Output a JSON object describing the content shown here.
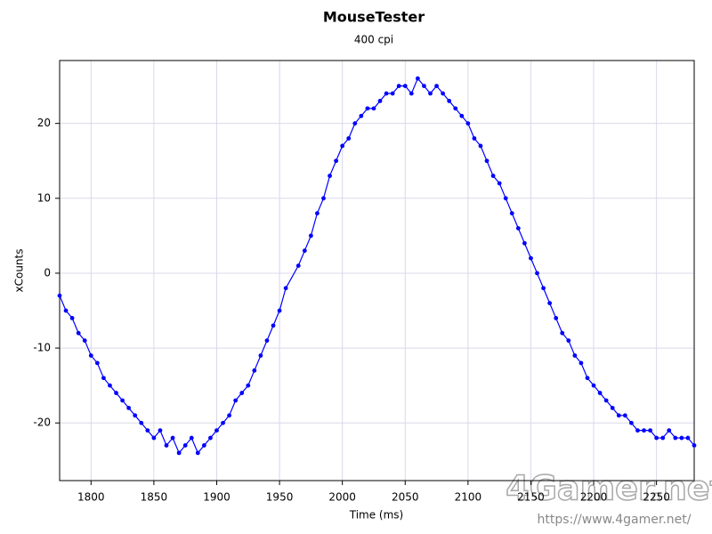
{
  "chart_data": {
    "type": "line",
    "title": "MouseTester",
    "subtitle": "400 cpi",
    "x_label": "Time (ms)",
    "y_label": "xCounts",
    "x": [
      1775,
      1780,
      1785,
      1790,
      1795,
      1800,
      1805,
      1810,
      1815,
      1820,
      1825,
      1830,
      1835,
      1840,
      1845,
      1850,
      1855,
      1860,
      1865,
      1870,
      1875,
      1880,
      1885,
      1890,
      1895,
      1900,
      1905,
      1910,
      1915,
      1920,
      1925,
      1930,
      1935,
      1940,
      1945,
      1950,
      1955,
      1965,
      1970,
      1975,
      1980,
      1985,
      1990,
      1995,
      2000,
      2005,
      2010,
      2015,
      2020,
      2025,
      2030,
      2035,
      2040,
      2045,
      2050,
      2055,
      2060,
      2065,
      2070,
      2075,
      2080,
      2085,
      2090,
      2095,
      2100,
      2105,
      2110,
      2115,
      2120,
      2125,
      2130,
      2135,
      2140,
      2145,
      2150,
      2155,
      2160,
      2165,
      2170,
      2175,
      2180,
      2185,
      2190,
      2195,
      2200,
      2205,
      2210,
      2215,
      2220,
      2225,
      2230,
      2235,
      2240,
      2245,
      2250,
      2255,
      2260,
      2265,
      2270,
      2275,
      2280
    ],
    "series": [
      {
        "name": "xCounts",
        "color": "#0000ff",
        "values": [
          -3,
          -5,
          -6,
          -8,
          -9,
          -11,
          -12,
          -14,
          -15,
          -16,
          -17,
          -18,
          -19,
          -20,
          -21,
          -22,
          -21,
          -23,
          -22,
          -24,
          -23,
          -22,
          -24,
          -23,
          -22,
          -21,
          -20,
          -19,
          -17,
          -16,
          -15,
          -13,
          -11,
          -9,
          -7,
          -5,
          -2,
          1,
          3,
          5,
          8,
          10,
          13,
          15,
          17,
          18,
          20,
          21,
          22,
          22,
          23,
          24,
          24,
          25,
          25,
          24,
          26,
          25,
          24,
          25,
          24,
          23,
          22,
          21,
          20,
          18,
          17,
          15,
          13,
          12,
          10,
          8,
          6,
          4,
          2,
          0,
          -2,
          -4,
          -6,
          -8,
          -9,
          -11,
          -12,
          -14,
          -15,
          -16,
          -17,
          -18,
          -19,
          -19,
          -20,
          -21,
          -21,
          -21,
          -22,
          -22,
          -21,
          -22,
          -22,
          -22,
          -23
        ]
      }
    ],
    "xlim": [
      1775,
      2280
    ],
    "ylim": [
      -27.7,
      28.4
    ],
    "xticks": [
      1800,
      1850,
      1900,
      1950,
      2000,
      2050,
      2100,
      2150,
      2200,
      2250
    ],
    "yticks": [
      -20,
      -10,
      0,
      10,
      20
    ],
    "grid": true
  },
  "watermark": {
    "logo": "4Gamer.net",
    "url": "https://www.4gamer.net/"
  }
}
